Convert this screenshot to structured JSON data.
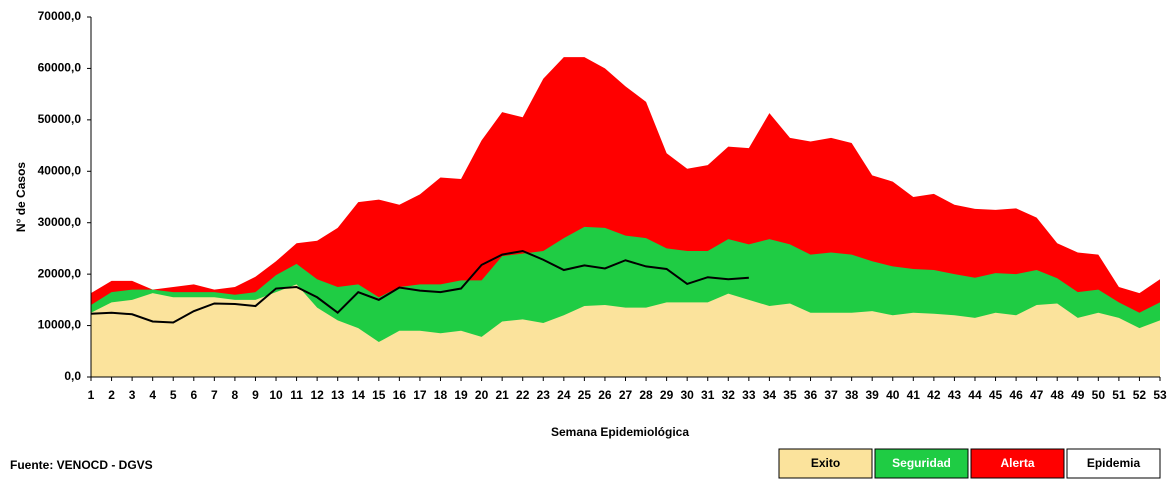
{
  "chart_data": {
    "type": "area",
    "y_label": "N° de Casos",
    "x_label": "Semana Epidemiológica",
    "source": "Fuente: VENOCD - DGVS",
    "x": [
      1,
      2,
      3,
      4,
      5,
      6,
      7,
      8,
      9,
      10,
      11,
      12,
      13,
      14,
      15,
      16,
      17,
      18,
      19,
      20,
      21,
      22,
      23,
      24,
      25,
      26,
      27,
      28,
      29,
      30,
      31,
      32,
      33,
      34,
      35,
      36,
      37,
      38,
      39,
      40,
      41,
      42,
      43,
      44,
      45,
      46,
      47,
      48,
      49,
      50,
      51,
      52,
      53
    ],
    "xlim": [
      1,
      53
    ],
    "ylim": [
      0,
      70000
    ],
    "yticks": [
      {
        "value": 0,
        "label": "0,0"
      },
      {
        "value": 10000,
        "label": "10000,0"
      },
      {
        "value": 20000,
        "label": "20000,0"
      },
      {
        "value": 30000,
        "label": "30000,0"
      },
      {
        "value": 40000,
        "label": "40000,0"
      },
      {
        "value": 50000,
        "label": "50000,0"
      },
      {
        "value": 60000,
        "label": "60000,0"
      },
      {
        "value": 70000,
        "label": "70000,0"
      }
    ],
    "series": [
      {
        "name": "Exito",
        "type": "area",
        "color": "#fbe39c",
        "values": [
          12500,
          14500,
          15000,
          16300,
          15500,
          15500,
          15500,
          15000,
          15000,
          16500,
          18000,
          13500,
          11000,
          9500,
          6800,
          9000,
          9000,
          8500,
          9000,
          7800,
          10800,
          11200,
          10500,
          12000,
          13800,
          14000,
          13500,
          13500,
          14500,
          14500,
          14500,
          16200,
          15000,
          13800,
          14300,
          12500,
          12500,
          12500,
          12800,
          12000,
          12500,
          12300,
          12000,
          11500,
          12500,
          12000,
          14000,
          14300,
          11500,
          12500,
          11500,
          9500,
          11000
        ]
      },
      {
        "name": "Seguridad",
        "type": "area",
        "color": "#1fcc44",
        "values": [
          14000,
          16500,
          17000,
          17000,
          16500,
          16500,
          16500,
          16000,
          16500,
          19800,
          22000,
          19000,
          17500,
          18000,
          15500,
          17500,
          18000,
          18000,
          18800,
          18800,
          23500,
          24000,
          24500,
          27000,
          29200,
          29000,
          27500,
          27000,
          25000,
          24500,
          24500,
          26800,
          25800,
          26800,
          25800,
          23800,
          24200,
          23800,
          22500,
          21500,
          21000,
          20800,
          20000,
          19300,
          20200,
          20000,
          20800,
          19200,
          16500,
          17000,
          14500,
          12500,
          14500
        ]
      },
      {
        "name": "Alerta",
        "type": "area",
        "color": "#ff0000",
        "values": [
          16300,
          18700,
          18700,
          17000,
          17500,
          18000,
          17000,
          17500,
          19500,
          22500,
          26000,
          26500,
          29000,
          34000,
          34500,
          33500,
          35500,
          38800,
          38500,
          46000,
          51500,
          50500,
          58000,
          62200,
          62200,
          60000,
          56500,
          53500,
          43500,
          40500,
          41200,
          44800,
          44500,
          51300,
          46500,
          45800,
          46500,
          45500,
          39200,
          38000,
          35000,
          35600,
          33500,
          32700,
          32500,
          32800,
          31000,
          26000,
          24200,
          23800,
          17500,
          16300,
          19000
        ]
      },
      {
        "name": "Epidemia",
        "type": "line",
        "color": "#000000",
        "values": [
          12300,
          12500,
          12200,
          10800,
          10600,
          12800,
          14300,
          14200,
          13800,
          17200,
          17500,
          15500,
          12500,
          16500,
          15000,
          17400,
          16800,
          16500,
          17200,
          21800,
          23800,
          24500,
          22800,
          20800,
          21700,
          21100,
          22700,
          21500,
          21000,
          18100,
          19400,
          19000,
          19300,
          null,
          null,
          null,
          null,
          null,
          null,
          null,
          null,
          null,
          null,
          null,
          null,
          null,
          null,
          null,
          null,
          null,
          null,
          null,
          null
        ]
      }
    ]
  }
}
